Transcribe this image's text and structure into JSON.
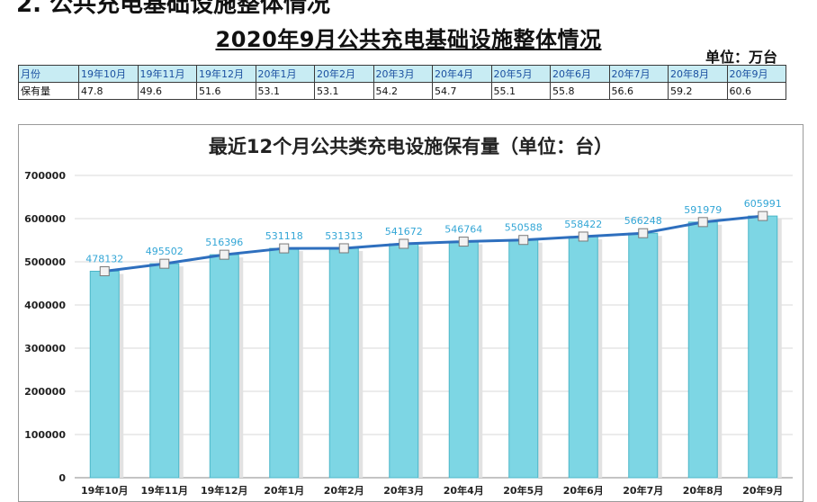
{
  "heading_cut": "2. 公共充电基础设施整体情况",
  "title": "2020年9月公共充电基础设施整体情况",
  "unit_label": "单位：万台",
  "table": {
    "row_labels": [
      "月份",
      "保有量"
    ],
    "months": [
      "19年10月",
      "19年11月",
      "19年12月",
      "20年1月",
      "20年2月",
      "20年3月",
      "20年4月",
      "20年5月",
      "20年6月",
      "20年7月",
      "20年8月",
      "20年9月"
    ],
    "values": [
      "47.8",
      "49.6",
      "51.6",
      "53.1",
      "53.1",
      "54.2",
      "54.7",
      "55.1",
      "55.8",
      "56.6",
      "59.2",
      "60.6"
    ]
  },
  "colors": {
    "bar": "#7dd6e4",
    "bar_edge": "#4cb6c8",
    "line": "#2e6fbe",
    "label": "#33a6d6",
    "table_header_bg": "#c8ecf3"
  },
  "chart_data": {
    "type": "bar",
    "title": "最近12个月公共类充电设施保有量（单位：台）",
    "categories": [
      "19年10月",
      "19年11月",
      "19年12月",
      "20年1月",
      "20年2月",
      "20年3月",
      "20年4月",
      "20年5月",
      "20年6月",
      "20年7月",
      "20年8月",
      "20年9月"
    ],
    "values": [
      478132,
      495502,
      516396,
      531118,
      531313,
      541672,
      546764,
      550588,
      558422,
      566248,
      591979,
      605991
    ],
    "overlay_line": true,
    "ylim": [
      0,
      700000
    ],
    "yticks": [
      0,
      100000,
      200000,
      300000,
      400000,
      500000,
      600000,
      700000
    ],
    "grid": true,
    "xlabel": "",
    "ylabel": ""
  }
}
